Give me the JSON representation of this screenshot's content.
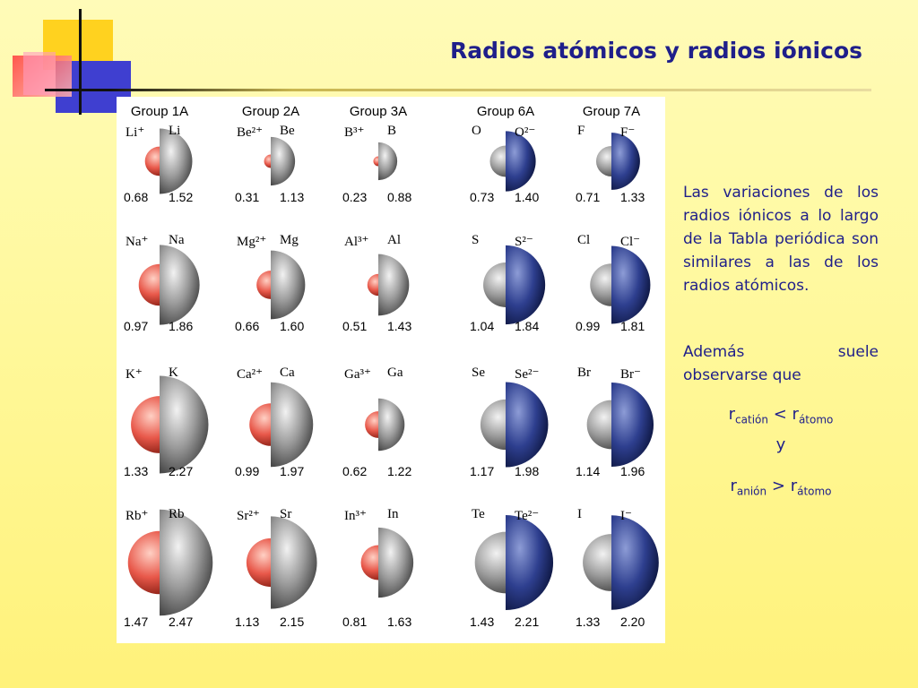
{
  "title": "Radios atómicos y radios iónicos",
  "groups": [
    "Group 1A",
    "Group 2A",
    "Group 3A",
    "Group 6A",
    "Group 7A"
  ],
  "rows": [
    [
      {
        "ion": "Li⁺",
        "atom": "Li",
        "ion_r": "0.68",
        "atom_r": "1.52",
        "ion_type": "cation"
      },
      {
        "ion": "Be²⁺",
        "atom": "Be",
        "ion_r": "0.31",
        "atom_r": "1.13",
        "ion_type": "cation"
      },
      {
        "ion": "B³⁺",
        "atom": "B",
        "ion_r": "0.23",
        "atom_r": "0.88",
        "ion_type": "cation"
      },
      {
        "ion": "O²⁻",
        "atom": "O",
        "ion_r": "1.40",
        "atom_r": "0.73",
        "ion_type": "anion"
      },
      {
        "ion": "F⁻",
        "atom": "F",
        "ion_r": "1.33",
        "atom_r": "0.71",
        "ion_type": "anion"
      }
    ],
    [
      {
        "ion": "Na⁺",
        "atom": "Na",
        "ion_r": "0.97",
        "atom_r": "1.86",
        "ion_type": "cation"
      },
      {
        "ion": "Mg²⁺",
        "atom": "Mg",
        "ion_r": "0.66",
        "atom_r": "1.60",
        "ion_type": "cation"
      },
      {
        "ion": "Al³⁺",
        "atom": "Al",
        "ion_r": "0.51",
        "atom_r": "1.43",
        "ion_type": "cation"
      },
      {
        "ion": "S²⁻",
        "atom": "S",
        "ion_r": "1.84",
        "atom_r": "1.04",
        "ion_type": "anion"
      },
      {
        "ion": "Cl⁻",
        "atom": "Cl",
        "ion_r": "1.81",
        "atom_r": "0.99",
        "ion_type": "anion"
      }
    ],
    [
      {
        "ion": "K⁺",
        "atom": "K",
        "ion_r": "1.33",
        "atom_r": "2.27",
        "ion_type": "cation"
      },
      {
        "ion": "Ca²⁺",
        "atom": "Ca",
        "ion_r": "0.99",
        "atom_r": "1.97",
        "ion_type": "cation"
      },
      {
        "ion": "Ga³⁺",
        "atom": "Ga",
        "ion_r": "0.62",
        "atom_r": "1.22",
        "ion_type": "cation"
      },
      {
        "ion": "Se²⁻",
        "atom": "Se",
        "ion_r": "1.98",
        "atom_r": "1.17",
        "ion_type": "anion"
      },
      {
        "ion": "Br⁻",
        "atom": "Br",
        "ion_r": "1.96",
        "atom_r": "1.14",
        "ion_type": "anion"
      }
    ],
    [
      {
        "ion": "Rb⁺",
        "atom": "Rb",
        "ion_r": "1.47",
        "atom_r": "2.47",
        "ion_type": "cation"
      },
      {
        "ion": "Sr²⁺",
        "atom": "Sr",
        "ion_r": "1.13",
        "atom_r": "2.15",
        "ion_type": "cation"
      },
      {
        "ion": "In³⁺",
        "atom": "In",
        "ion_r": "0.81",
        "atom_r": "1.63",
        "ion_type": "cation"
      },
      {
        "ion": "Te²⁻",
        "atom": "Te",
        "ion_r": "2.21",
        "atom_r": "1.43",
        "ion_type": "anion"
      },
      {
        "ion": "I⁻",
        "atom": "I",
        "ion_r": "2.20",
        "atom_r": "1.33",
        "ion_type": "anion"
      }
    ]
  ],
  "colors": {
    "atom": "#9a9a9a",
    "cation": "#e8584a",
    "anion": "#2e3f8f",
    "text": "#1f1f8a"
  },
  "paragraph1": "Las variaciones de los radios iónicos a lo largo de la Tabla periódica son similares a las de los radios atómicos.",
  "paragraph2": "Además suele observarse que",
  "formula1": {
    "r": "r",
    "sub1": "catión",
    "op": "<",
    "sub2": "átomo"
  },
  "conj": "y",
  "formula2": {
    "r": "r",
    "sub1": "anión",
    "op": ">",
    "sub2": "átomo"
  }
}
